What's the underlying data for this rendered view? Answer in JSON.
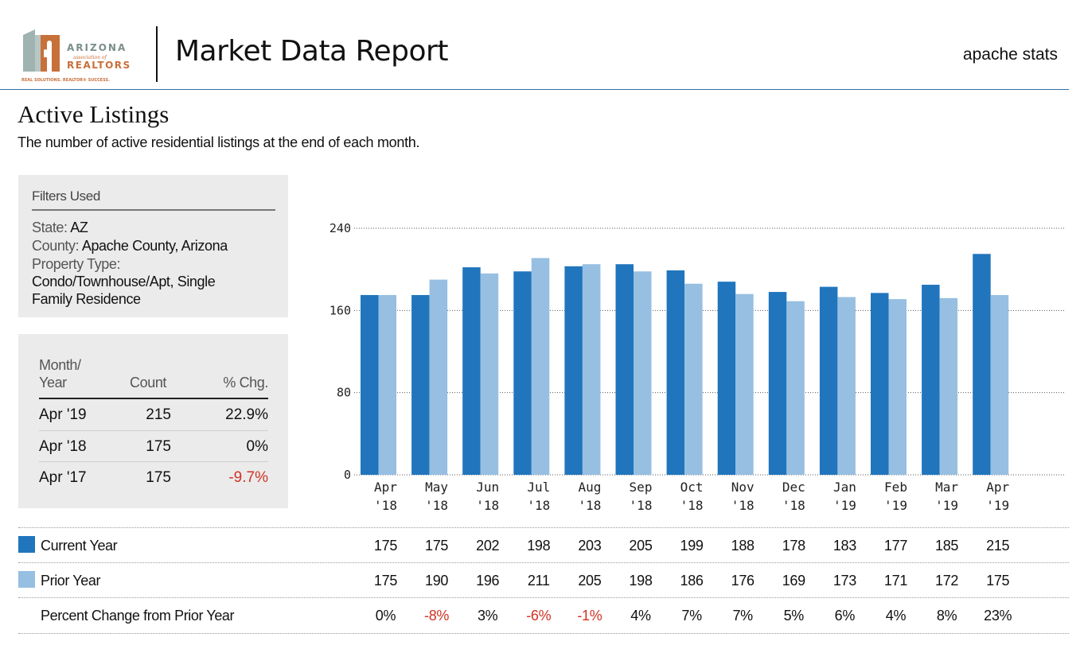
{
  "header": {
    "logo_line1": "ARIZONA",
    "logo_line2": "association of",
    "logo_line3": "REALTORS",
    "logo_tagline": "REAL SOLUTIONS. REALTOR® SUCCESS.",
    "title": "Market Data Report",
    "tag": "apache stats"
  },
  "section": {
    "title": "Active Listings",
    "subtitle": "The number of active residential listings at the end of each month."
  },
  "filters": {
    "heading": "Filters Used",
    "state_label": "State:",
    "state_value": "AZ",
    "county_label": "County:",
    "county_value": "Apache County, Arizona",
    "property_label": "Property Type:",
    "property_value_line1": "Condo/Townhouse/Apt, Single",
    "property_value_line2": "Family Residence"
  },
  "stats": {
    "headers": {
      "month_line1": "Month/",
      "month_line2": "Year",
      "count": "Count",
      "chg": "% Chg."
    },
    "rows": [
      {
        "period": "Apr '19",
        "count": "215",
        "chg": "22.9%",
        "negative": false
      },
      {
        "period": "Apr '18",
        "count": "175",
        "chg": "0%",
        "negative": false
      },
      {
        "period": "Apr '17",
        "count": "175",
        "chg": "-9.7%",
        "negative": true
      }
    ]
  },
  "colors": {
    "current": "#2075bd",
    "prior": "#96bfe2",
    "negative": "#d03224"
  },
  "chart_data": {
    "type": "bar",
    "categories": [
      "Apr '18",
      "May '18",
      "Jun '18",
      "Jul '18",
      "Aug '18",
      "Sep '18",
      "Oct '18",
      "Nov '18",
      "Dec '18",
      "Jan '19",
      "Feb '19",
      "Mar '19",
      "Apr '19"
    ],
    "category_lines": [
      [
        "Apr",
        "'18"
      ],
      [
        "May",
        "'18"
      ],
      [
        "Jun",
        "'18"
      ],
      [
        "Jul",
        "'18"
      ],
      [
        "Aug",
        "'18"
      ],
      [
        "Sep",
        "'18"
      ],
      [
        "Oct",
        "'18"
      ],
      [
        "Nov",
        "'18"
      ],
      [
        "Dec",
        "'18"
      ],
      [
        "Jan",
        "'19"
      ],
      [
        "Feb",
        "'19"
      ],
      [
        "Mar",
        "'19"
      ],
      [
        "Apr",
        "'19"
      ]
    ],
    "series": [
      {
        "name": "Current Year",
        "values": [
          175,
          175,
          202,
          198,
          203,
          205,
          199,
          188,
          178,
          183,
          177,
          185,
          215
        ]
      },
      {
        "name": "Prior Year",
        "values": [
          175,
          190,
          196,
          211,
          205,
          198,
          186,
          176,
          169,
          173,
          171,
          172,
          175
        ]
      }
    ],
    "percent_change": [
      "0%",
      "-8%",
      "3%",
      "-6%",
      "-1%",
      "4%",
      "7%",
      "7%",
      "5%",
      "6%",
      "4%",
      "8%",
      "23%"
    ],
    "percent_label": "Percent Change from Prior Year",
    "yticks": [
      0,
      80,
      160,
      240
    ],
    "ylim": [
      0,
      240
    ],
    "grid": true
  }
}
